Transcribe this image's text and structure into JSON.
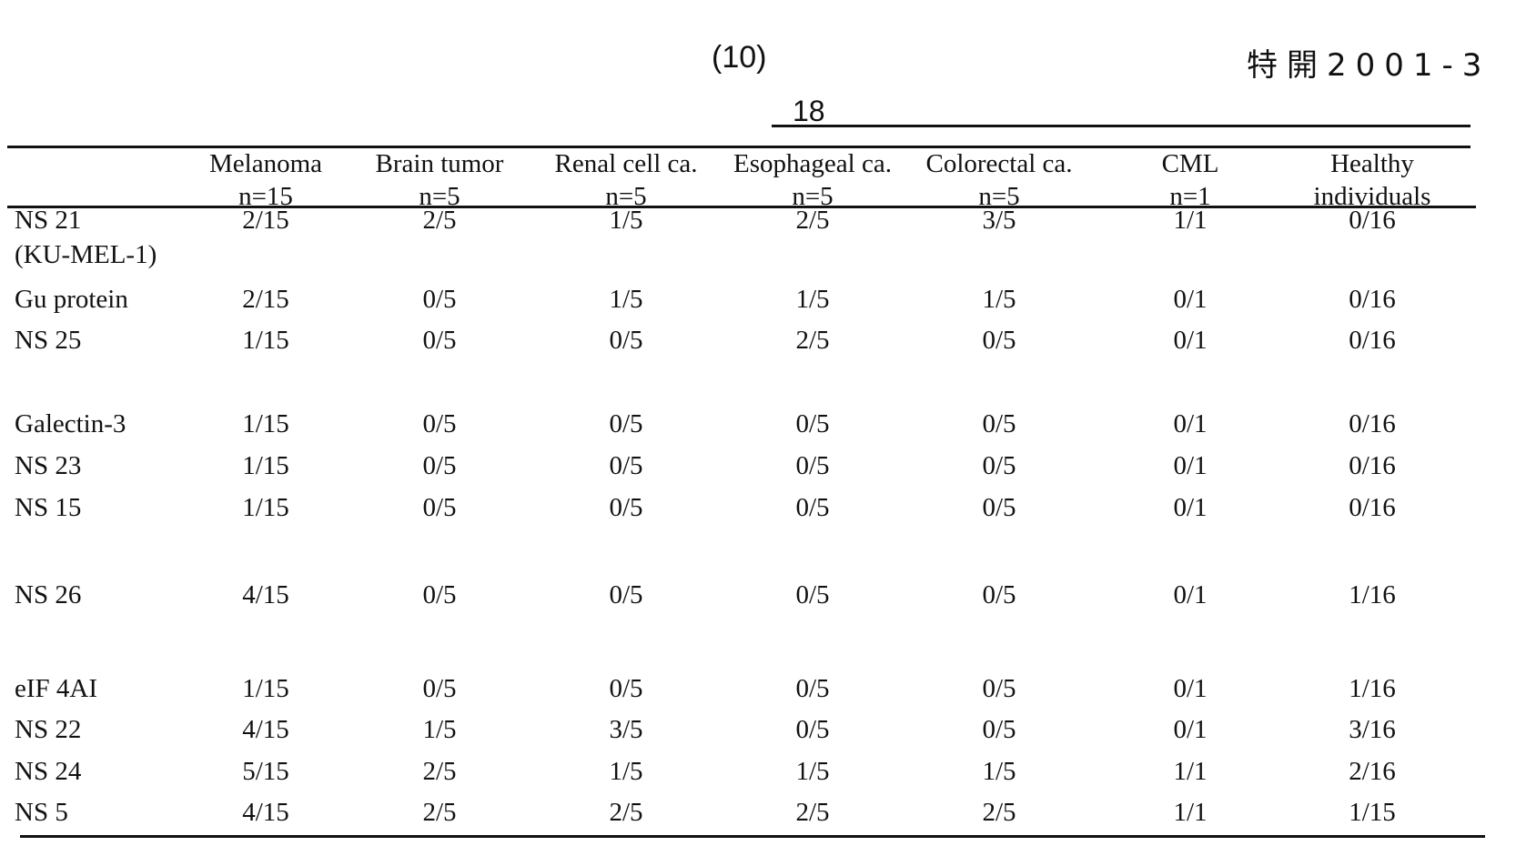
{
  "page_header": {
    "page_number": "(10)",
    "publication_number": "特開2001-3",
    "column_number": "18"
  },
  "table": {
    "columns": [
      {
        "line1": "Melanoma",
        "line2": "n=15"
      },
      {
        "line1": "Brain tumor",
        "line2": "n=5"
      },
      {
        "line1": "Renal cell ca.",
        "line2": "n=5"
      },
      {
        "line1": "Esophageal ca.",
        "line2": "n=5"
      },
      {
        "line1": "Colorectal ca.",
        "line2": "n=5"
      },
      {
        "line1": "CML",
        "line2": "n=1"
      },
      {
        "line1": "Healthy",
        "line2": "individuals"
      }
    ],
    "rows": [
      {
        "label": "NS 21",
        "label2": "(KU-MEL-1)",
        "values": [
          "2/15",
          "2/5",
          "1/5",
          "2/5",
          "3/5",
          "1/1",
          "0/16"
        ]
      },
      {
        "label": "Gu protein",
        "values": [
          "2/15",
          "0/5",
          "1/5",
          "1/5",
          "1/5",
          "0/1",
          "0/16"
        ]
      },
      {
        "label": "NS 25",
        "values": [
          "1/15",
          "0/5",
          "0/5",
          "2/5",
          "0/5",
          "0/1",
          "0/16"
        ]
      },
      {
        "label": "Galectin-3",
        "values": [
          "1/15",
          "0/5",
          "0/5",
          "0/5",
          "0/5",
          "0/1",
          "0/16"
        ]
      },
      {
        "label": "NS 23",
        "values": [
          "1/15",
          "0/5",
          "0/5",
          "0/5",
          "0/5",
          "0/1",
          "0/16"
        ]
      },
      {
        "label": "NS 15",
        "values": [
          "1/15",
          "0/5",
          "0/5",
          "0/5",
          "0/5",
          "0/1",
          "0/16"
        ]
      },
      {
        "label": "NS 26",
        "values": [
          "4/15",
          "0/5",
          "0/5",
          "0/5",
          "0/5",
          "0/1",
          "1/16"
        ]
      },
      {
        "label": "eIF 4AI",
        "values": [
          "1/15",
          "0/5",
          "0/5",
          "0/5",
          "0/5",
          "0/1",
          "1/16"
        ]
      },
      {
        "label": "NS 22",
        "values": [
          "4/15",
          "1/5",
          "3/5",
          "0/5",
          "0/5",
          "0/1",
          "3/16"
        ]
      },
      {
        "label": "NS 24",
        "values": [
          "5/15",
          "2/5",
          "1/5",
          "1/5",
          "1/5",
          "1/1",
          "2/16"
        ]
      },
      {
        "label": "NS 5",
        "values": [
          "4/15",
          "2/5",
          "2/5",
          "2/5",
          "2/5",
          "1/1",
          "1/15"
        ]
      }
    ]
  }
}
